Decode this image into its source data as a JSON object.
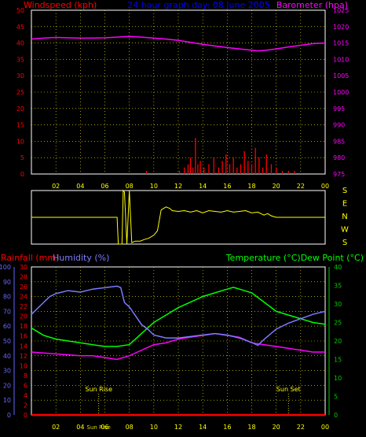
{
  "header": {
    "left_title": "Windspeed (kph)",
    "center_title": "24 hour graph day: 08 June 2005",
    "right_title": "Barometer (hpa)"
  },
  "wind_dir_labels": [
    "S",
    "E",
    "N",
    "W",
    "S"
  ],
  "bottom_header": {
    "rain": "Rainfall (mm)",
    "humidity": "Humidity (%)",
    "temp_dew": "Temperature (°C)Dew Point (°C)"
  },
  "sun": {
    "rise_label": "Sun Rise",
    "set_label": "Sun Set",
    "rise_time": "Sun Rise",
    "rise_hour": 5.5,
    "set_hour": 21.0,
    "axis_overlap_label": "Sun Rise"
  },
  "colors": {
    "wind": "#ff0000",
    "baro": "#ff00ff",
    "title": "#0000ff",
    "dir": "#ffff00",
    "humidity": "#7b7bff",
    "temp": "#00ff00",
    "dew": "#ff00ff",
    "rain": "#ff0000",
    "grid": "#ffff00",
    "axis_green": "#00cc00",
    "humidity_axis": "#6666ff"
  },
  "chart_data": [
    {
      "type": "line",
      "title": "24 hour graph day: 08 June 2005",
      "x_ticks": [
        "02",
        "04",
        "06",
        "08",
        "10",
        "12",
        "14",
        "16",
        "18",
        "20",
        "22",
        "00"
      ],
      "xlim": [
        0,
        24
      ],
      "left_axis": {
        "label": "Windspeed (kph)",
        "ylim": [
          0,
          50
        ],
        "ticks": [
          0,
          5,
          10,
          15,
          20,
          25,
          30,
          35,
          40,
          45,
          50
        ]
      },
      "right_axis": {
        "label": "Barometer (hpa)",
        "ylim": [
          975,
          1025
        ],
        "ticks": [
          975,
          980,
          985,
          990,
          995,
          1000,
          1005,
          1010,
          1015,
          1020,
          1025
        ]
      },
      "grid": true,
      "series": [
        {
          "name": "Barometer (hpa)",
          "axis": "right",
          "x": [
            0,
            1,
            2,
            3,
            4,
            5,
            6,
            7,
            8,
            9,
            10,
            11,
            12,
            13,
            14,
            15,
            16,
            17,
            18,
            18.5,
            19,
            20,
            21,
            22,
            23,
            24
          ],
          "values": [
            1016.2,
            1016.5,
            1016.7,
            1016.6,
            1016.5,
            1016.5,
            1016.6,
            1016.8,
            1017.0,
            1016.8,
            1016.5,
            1016.2,
            1015.8,
            1015.2,
            1014.6,
            1014.1,
            1013.6,
            1013.2,
            1012.8,
            1012.6,
            1012.7,
            1013.2,
            1013.8,
            1014.3,
            1014.8,
            1015.0
          ]
        },
        {
          "name": "Windspeed (kph)",
          "axis": "left",
          "type": "bar",
          "x": [
            9.4,
            12.1,
            12.5,
            12.8,
            13.0,
            13.2,
            13.4,
            13.6,
            13.8,
            14.1,
            14.5,
            14.9,
            15.3,
            15.6,
            15.9,
            16.2,
            16.5,
            16.8,
            17.1,
            17.4,
            17.7,
            18.0,
            18.3,
            18.6,
            18.9,
            19.2,
            19.6,
            20.0,
            20.5,
            21.0,
            21.5
          ],
          "values": [
            1,
            1,
            2,
            3,
            5,
            2,
            11,
            3,
            4,
            2,
            3,
            5,
            2,
            4,
            6,
            3,
            5,
            2,
            3,
            7,
            4,
            3,
            8,
            5,
            2,
            6,
            3,
            2,
            1,
            1,
            1
          ]
        }
      ]
    },
    {
      "type": "line",
      "title": "Wind Direction",
      "y_labels": [
        "S",
        "E",
        "N",
        "W",
        "S"
      ],
      "ylim": [
        0,
        360
      ],
      "xlim": [
        0,
        24
      ],
      "series": [
        {
          "name": "Wind Direction",
          "x": [
            0,
            7.0,
            7.1,
            7.4,
            7.5,
            7.6,
            7.8,
            8.0,
            8.2,
            8.5,
            8.9,
            9.2,
            9.6,
            10.0,
            10.3,
            10.6,
            11.0,
            11.3,
            11.5,
            12.0,
            12.5,
            13.0,
            13.5,
            14.0,
            14.5,
            15.0,
            15.5,
            16.0,
            16.5,
            17.0,
            17.5,
            18.0,
            18.5,
            19.0,
            19.3,
            19.6,
            20.0,
            20.5,
            21.0,
            22.0,
            23.0,
            24.0
          ],
          "values": [
            180,
            180,
            0,
            0,
            360,
            350,
            0,
            360,
            10,
            20,
            20,
            30,
            40,
            60,
            90,
            230,
            250,
            240,
            225,
            220,
            225,
            215,
            225,
            210,
            225,
            220,
            215,
            225,
            215,
            220,
            225,
            210,
            215,
            195,
            205,
            190,
            180,
            180,
            180,
            180,
            180,
            180
          ]
        }
      ]
    },
    {
      "type": "line",
      "title": "",
      "xlim": [
        0,
        24
      ],
      "x_ticks": [
        "02",
        "04",
        "06",
        "08",
        "10",
        "12",
        "14",
        "16",
        "18",
        "20",
        "22",
        "00"
      ],
      "axes": {
        "humidity": {
          "label": "Humidity (%)",
          "ylim": [
            0,
            100
          ],
          "ticks": [
            0,
            10,
            20,
            30,
            40,
            50,
            60,
            70,
            80,
            90,
            100
          ]
        },
        "rainfall": {
          "label": "Rainfall (mm)",
          "ylim": [
            0,
            30
          ],
          "ticks": [
            0,
            2,
            4,
            6,
            8,
            10,
            12,
            14,
            16,
            18,
            20,
            22,
            24,
            26,
            28,
            30
          ]
        },
        "temperature": {
          "label": "Temperature (°C)Dew Point (°C)",
          "ylim": [
            0,
            40
          ],
          "ticks": [
            0,
            5,
            10,
            15,
            20,
            25,
            30,
            35,
            40
          ]
        }
      },
      "grid": true,
      "series": [
        {
          "name": "Humidity (%)",
          "axis": "humidity",
          "x": [
            0,
            0.5,
            1,
            1.5,
            2,
            3,
            4,
            5,
            6,
            7,
            7.3,
            7.6,
            8,
            9,
            9.5,
            10,
            11,
            12,
            13,
            14,
            15,
            16,
            17,
            18,
            18.5,
            19,
            20,
            21,
            22,
            23,
            24
          ],
          "values": [
            68,
            72,
            76,
            80,
            82,
            84,
            83,
            85,
            86,
            87,
            86,
            76,
            73,
            61,
            58,
            54,
            52,
            52,
            53,
            54,
            55,
            54,
            52,
            49,
            47,
            51,
            58,
            62,
            65,
            68,
            70
          ]
        },
        {
          "name": "Temperature (°C)",
          "axis": "temperature",
          "x": [
            0,
            1,
            2,
            3,
            4,
            5,
            6,
            7,
            8,
            9,
            10,
            11,
            12,
            13,
            14,
            15,
            16,
            16.5,
            17,
            18,
            19,
            20,
            21,
            22,
            23,
            24
          ],
          "values": [
            23.5,
            21.5,
            20.5,
            20.0,
            19.5,
            19.0,
            18.5,
            18.5,
            19.0,
            22.0,
            25.0,
            27.0,
            29.0,
            30.5,
            32.0,
            33.0,
            34.0,
            34.5,
            34.0,
            33.0,
            30.5,
            28.0,
            27.0,
            26.0,
            25.0,
            24.5
          ]
        },
        {
          "name": "Dew Point (°C)",
          "axis": "temperature",
          "x": [
            0,
            2,
            4,
            5,
            6,
            7,
            8,
            9,
            10,
            11,
            12,
            13,
            14,
            15,
            16,
            17,
            18,
            19,
            20,
            21,
            22,
            23,
            24
          ],
          "values": [
            17.0,
            16.5,
            16.0,
            16.0,
            15.5,
            15.0,
            16.0,
            17.5,
            19.0,
            19.5,
            20.5,
            21.0,
            21.5,
            22.0,
            21.5,
            21.0,
            19.5,
            19.0,
            18.5,
            18.0,
            17.5,
            17.0,
            17.0
          ]
        },
        {
          "name": "Rainfall (mm)",
          "axis": "rainfall",
          "x": [
            0,
            24
          ],
          "values": [
            0,
            0
          ]
        }
      ]
    }
  ]
}
